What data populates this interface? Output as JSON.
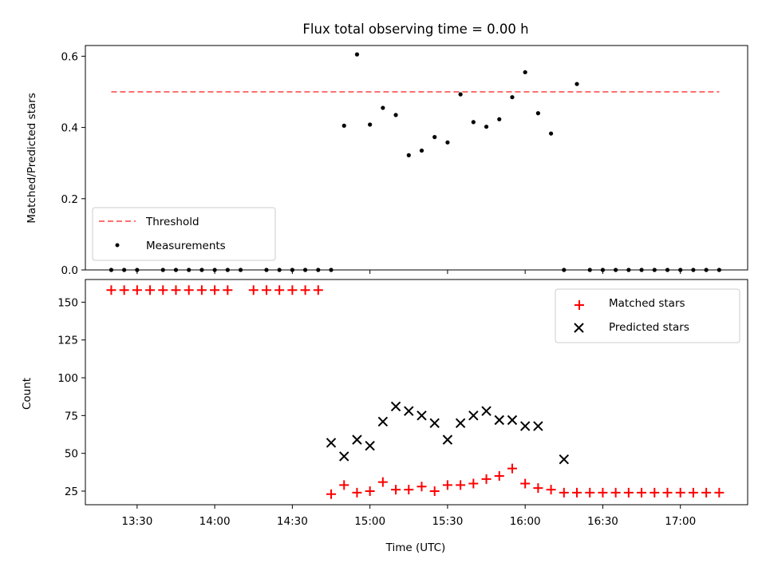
{
  "colors": {
    "threshold": "#ff6f6f",
    "measurement": "#000000",
    "matched": "#ff0000",
    "predicted": "#000000"
  },
  "chart_data": [
    {
      "type": "scatter",
      "panel": "top",
      "title": "Flux total observing time = 0.00 h",
      "xlabel": "",
      "ylabel": "Matched/Predicted stars",
      "ylim": [
        0,
        0.63
      ],
      "yticks": [
        "0.0",
        "0.2",
        "0.4",
        "0.6"
      ],
      "ytick_values": [
        0.0,
        0.2,
        0.4,
        0.6
      ],
      "legend_position": "lower-left",
      "series": [
        {
          "name": "Threshold",
          "kind": "dashed-line",
          "x": [
            "13:20",
            "17:15"
          ],
          "y": [
            0.5,
            0.5
          ]
        },
        {
          "name": "Measurements",
          "kind": "points",
          "x": [
            "13:20",
            "13:25",
            "13:30",
            "13:40",
            "13:45",
            "13:50",
            "13:55",
            "14:00",
            "14:05",
            "14:10",
            "14:20",
            "14:25",
            "14:30",
            "14:35",
            "14:40",
            "14:45",
            "14:50",
            "14:55",
            "15:00",
            "15:05",
            "15:10",
            "15:15",
            "15:20",
            "15:25",
            "15:30",
            "15:35",
            "15:40",
            "15:45",
            "15:50",
            "15:55",
            "16:00",
            "16:05",
            "16:10",
            "16:15",
            "16:20",
            "16:25",
            "16:30",
            "16:35",
            "16:40",
            "16:45",
            "16:50",
            "16:55",
            "17:00",
            "17:05",
            "17:10",
            "17:15"
          ],
          "y": [
            0,
            0,
            0,
            0,
            0,
            0,
            0,
            0,
            0,
            0,
            0,
            0,
            0,
            0,
            0,
            0,
            0.405,
            0.605,
            0.408,
            0.455,
            0.435,
            0.322,
            0.335,
            0.373,
            0.358,
            0.493,
            0.415,
            0.402,
            0.423,
            0.485,
            0.555,
            0.44,
            0.383,
            0,
            0.522,
            0,
            0,
            0,
            0,
            0,
            0,
            0,
            0,
            0,
            0,
            0
          ]
        }
      ]
    },
    {
      "type": "scatter",
      "panel": "bottom",
      "title": "",
      "xlabel": "Time (UTC)",
      "ylabel": "Count",
      "ylim": [
        16,
        165
      ],
      "yticks": [
        "25",
        "50",
        "75",
        "100",
        "125",
        "150"
      ],
      "ytick_values": [
        25,
        50,
        75,
        100,
        125,
        150
      ],
      "xticks": [
        "13:30",
        "14:00",
        "14:30",
        "15:00",
        "15:30",
        "16:00",
        "16:30",
        "17:00"
      ],
      "xlim": [
        "13:10",
        "17:26"
      ],
      "legend_position": "top-right",
      "series": [
        {
          "name": "Matched stars",
          "marker": "plus",
          "x": [
            "13:20",
            "13:25",
            "13:30",
            "13:35",
            "13:40",
            "13:45",
            "13:50",
            "13:55",
            "14:00",
            "14:05",
            "14:15",
            "14:20",
            "14:25",
            "14:30",
            "14:35",
            "14:40",
            "14:45",
            "14:50",
            "14:55",
            "15:00",
            "15:05",
            "15:10",
            "15:15",
            "15:20",
            "15:25",
            "15:30",
            "15:35",
            "15:40",
            "15:45",
            "15:50",
            "15:55",
            "16:00",
            "16:05",
            "16:10",
            "16:15",
            "16:20",
            "16:25",
            "16:30",
            "16:35",
            "16:40",
            "16:45",
            "16:50",
            "16:55",
            "17:00",
            "17:05",
            "17:10",
            "17:15"
          ],
          "y": [
            158,
            158,
            158,
            158,
            158,
            158,
            158,
            158,
            158,
            158,
            158,
            158,
            158,
            158,
            158,
            158,
            23,
            29,
            24,
            25,
            31,
            26,
            26,
            28,
            25,
            29,
            29,
            30,
            33,
            35,
            40,
            30,
            27,
            26,
            24,
            24,
            24,
            24,
            24,
            24,
            24,
            24,
            24,
            24,
            24,
            24,
            24
          ]
        },
        {
          "name": "Predicted stars",
          "marker": "x",
          "x": [
            "14:45",
            "14:50",
            "14:55",
            "15:00",
            "15:05",
            "15:10",
            "15:15",
            "15:20",
            "15:25",
            "15:30",
            "15:35",
            "15:40",
            "15:45",
            "15:50",
            "15:55",
            "16:00",
            "16:05",
            "16:15"
          ],
          "y": [
            57,
            48,
            59,
            55,
            71,
            81,
            78,
            75,
            70,
            59,
            70,
            75,
            78,
            72,
            72,
            68,
            68,
            46
          ]
        }
      ]
    }
  ]
}
